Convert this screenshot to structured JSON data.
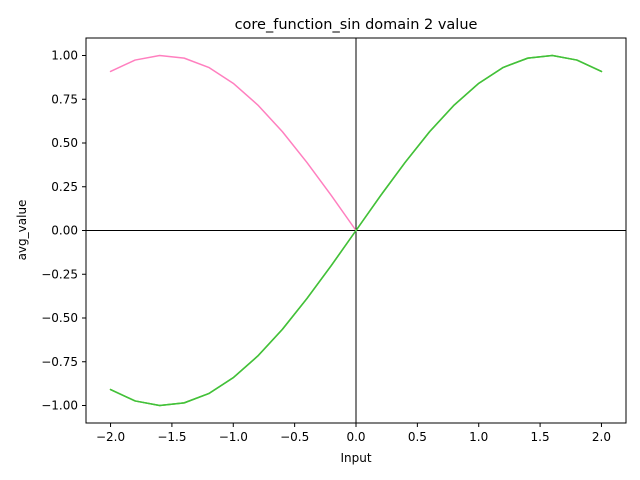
{
  "chart_data": {
    "type": "line",
    "title": "core_function_sin domain 2 value",
    "xlabel": "Input",
    "ylabel": "avg_value",
    "xlim": [
      -2.2,
      2.2
    ],
    "ylim": [
      -1.1,
      1.1
    ],
    "x_ticks": [
      -2.0,
      -1.5,
      -1.0,
      -0.5,
      0.0,
      0.5,
      1.0,
      1.5,
      2.0
    ],
    "x_tick_labels": [
      "−2.0",
      "−1.5",
      "−1.0",
      "−0.5",
      "0.0",
      "0.5",
      "1.0",
      "1.5",
      "2.0"
    ],
    "y_ticks": [
      -1.0,
      -0.75,
      -0.5,
      -0.25,
      0.0,
      0.25,
      0.5,
      0.75,
      1.0
    ],
    "y_tick_labels": [
      "−1.00",
      "−0.75",
      "−0.50",
      "−0.25",
      "0.00",
      "0.25",
      "0.50",
      "0.75",
      "1.00"
    ],
    "grid": false,
    "reference_lines": {
      "x": 0,
      "y": 0
    },
    "x": [
      -2.0,
      -1.8,
      -1.6,
      -1.4,
      -1.2,
      -1.0,
      -0.8,
      -0.6,
      -0.4,
      -0.2,
      0.0,
      0.2,
      0.4,
      0.6,
      0.8,
      1.0,
      1.2,
      1.4,
      1.6,
      1.8,
      2.0
    ],
    "series": [
      {
        "color": "#ff7fbf",
        "x": [
          -2.0,
          -1.8,
          -1.6,
          -1.4,
          -1.2,
          -1.0,
          -0.8,
          -0.6,
          -0.4,
          -0.2,
          0.0
        ],
        "values": [
          0.909,
          0.974,
          1.0,
          0.985,
          0.932,
          0.841,
          0.717,
          0.565,
          0.389,
          0.199,
          0.0
        ]
      },
      {
        "color": "#bfdf3f",
        "values": [
          -0.909,
          -0.974,
          -1.0,
          -0.985,
          -0.932,
          -0.841,
          -0.717,
          -0.565,
          -0.389,
          -0.199,
          0.0,
          0.199,
          0.389,
          0.565,
          0.717,
          0.841,
          0.932,
          0.985,
          1.0,
          0.974,
          0.909
        ]
      },
      {
        "color": "#7fdf3f",
        "values": [
          -0.909,
          -0.974,
          -1.0,
          -0.985,
          -0.932,
          -0.841,
          -0.717,
          -0.565,
          -0.389,
          -0.199,
          0.0,
          0.199,
          0.389,
          0.565,
          0.717,
          0.841,
          0.932,
          0.985,
          1.0,
          0.974,
          0.909
        ]
      },
      {
        "color": "#3fbf3f",
        "values": [
          -0.909,
          -0.974,
          -1.0,
          -0.985,
          -0.932,
          -0.841,
          -0.717,
          -0.565,
          -0.389,
          -0.199,
          0.0,
          0.199,
          0.389,
          0.565,
          0.717,
          0.841,
          0.932,
          0.985,
          1.0,
          0.974,
          0.909
        ]
      }
    ]
  }
}
